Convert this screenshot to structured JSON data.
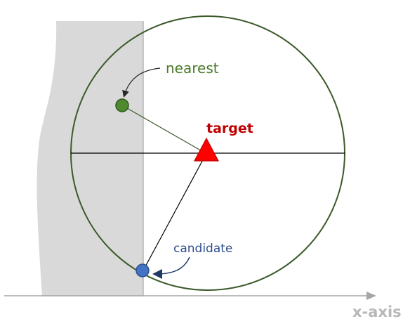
{
  "labels": {
    "nearest": "nearest",
    "target": "target",
    "candidate": "candidate",
    "x_axis": "x-axis"
  },
  "colors": {
    "circle": "#3a5a2a",
    "nearest_point": "#4f8a2f",
    "target_marker": "#ff0000",
    "candidate_point": "#4472c4",
    "shaded_region": "#d9d9d9",
    "axis": "#a6a6a6"
  }
}
